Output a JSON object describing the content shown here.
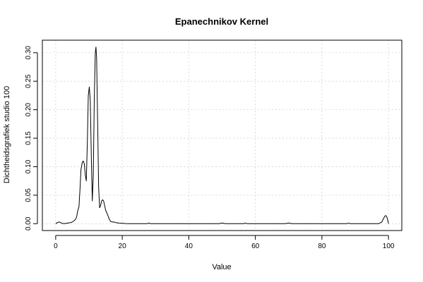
{
  "chart_data": {
    "type": "line",
    "title": "Epanechnikov Kernel",
    "xlabel": "Value",
    "ylabel": "Dichtheidsgrafiek studio 100",
    "xlim": [
      -4,
      104
    ],
    "ylim": [
      -0.012,
      0.322
    ],
    "x_ticks": [
      0,
      20,
      40,
      60,
      80,
      100
    ],
    "x_tick_labels": [
      "0",
      "20",
      "40",
      "60",
      "80",
      "100"
    ],
    "y_ticks": [
      0.0,
      0.05,
      0.1,
      0.15,
      0.2,
      0.25,
      0.3
    ],
    "y_tick_labels": [
      "0.00",
      "0.05",
      "0.10",
      "0.15",
      "0.20",
      "0.25",
      "0.30"
    ],
    "grid": true,
    "legend": "none",
    "line_color": "#000000",
    "grid_color": "#d3d3d3",
    "series": [
      {
        "x": [
          0,
          0.5,
          1,
          1.5,
          2,
          2.5,
          3,
          3.5,
          4,
          4.5,
          5,
          5.5,
          6,
          6.3,
          6.6,
          7,
          7.3,
          7.6,
          8,
          8.3,
          8.6,
          8.9,
          9.2,
          9.5,
          9.8,
          10.1,
          10.4,
          10.7,
          11,
          11.3,
          11.6,
          11.9,
          12.1,
          12.3,
          12.6,
          12.9,
          13.2,
          13.5,
          13.8,
          14.1,
          14.4,
          14.7,
          15,
          15.3,
          15.7,
          16.1,
          16.5,
          17,
          17.5,
          18,
          19,
          20,
          21,
          22,
          25,
          27.5,
          28,
          28.5,
          30,
          35,
          40,
          45,
          49,
          50,
          51,
          55,
          56.5,
          57,
          57.5,
          60,
          65,
          69,
          70,
          71,
          75,
          80,
          85,
          87.5,
          88,
          88.5,
          90,
          95,
          97,
          98,
          98.5,
          99,
          99.3,
          99.6,
          99.8,
          100
        ],
        "y": [
          0.0,
          0.002,
          0.003,
          0.002,
          0.0005,
          0.0,
          0.0005,
          0.001,
          0.0015,
          0.002,
          0.003,
          0.005,
          0.008,
          0.012,
          0.022,
          0.03,
          0.06,
          0.095,
          0.108,
          0.11,
          0.105,
          0.085,
          0.075,
          0.14,
          0.225,
          0.24,
          0.215,
          0.12,
          0.04,
          0.085,
          0.22,
          0.3,
          0.31,
          0.29,
          0.18,
          0.065,
          0.028,
          0.032,
          0.04,
          0.042,
          0.04,
          0.032,
          0.024,
          0.02,
          0.014,
          0.008,
          0.004,
          0.003,
          0.003,
          0.002,
          0.001,
          0.0008,
          0.0002,
          0.0,
          0.0,
          0.0,
          0.0012,
          0.0,
          0.0,
          0.0,
          0.0,
          0.0,
          0.0,
          0.0012,
          0.0,
          0.0,
          0.0,
          0.0012,
          0.0,
          0.0,
          0.0,
          0.0,
          0.0012,
          0.0,
          0.0,
          0.0,
          0.0,
          0.0,
          0.0012,
          0.0,
          0.0,
          0.0,
          0.0,
          0.003,
          0.009,
          0.014,
          0.014,
          0.01,
          0.005,
          0.0
        ]
      }
    ]
  }
}
